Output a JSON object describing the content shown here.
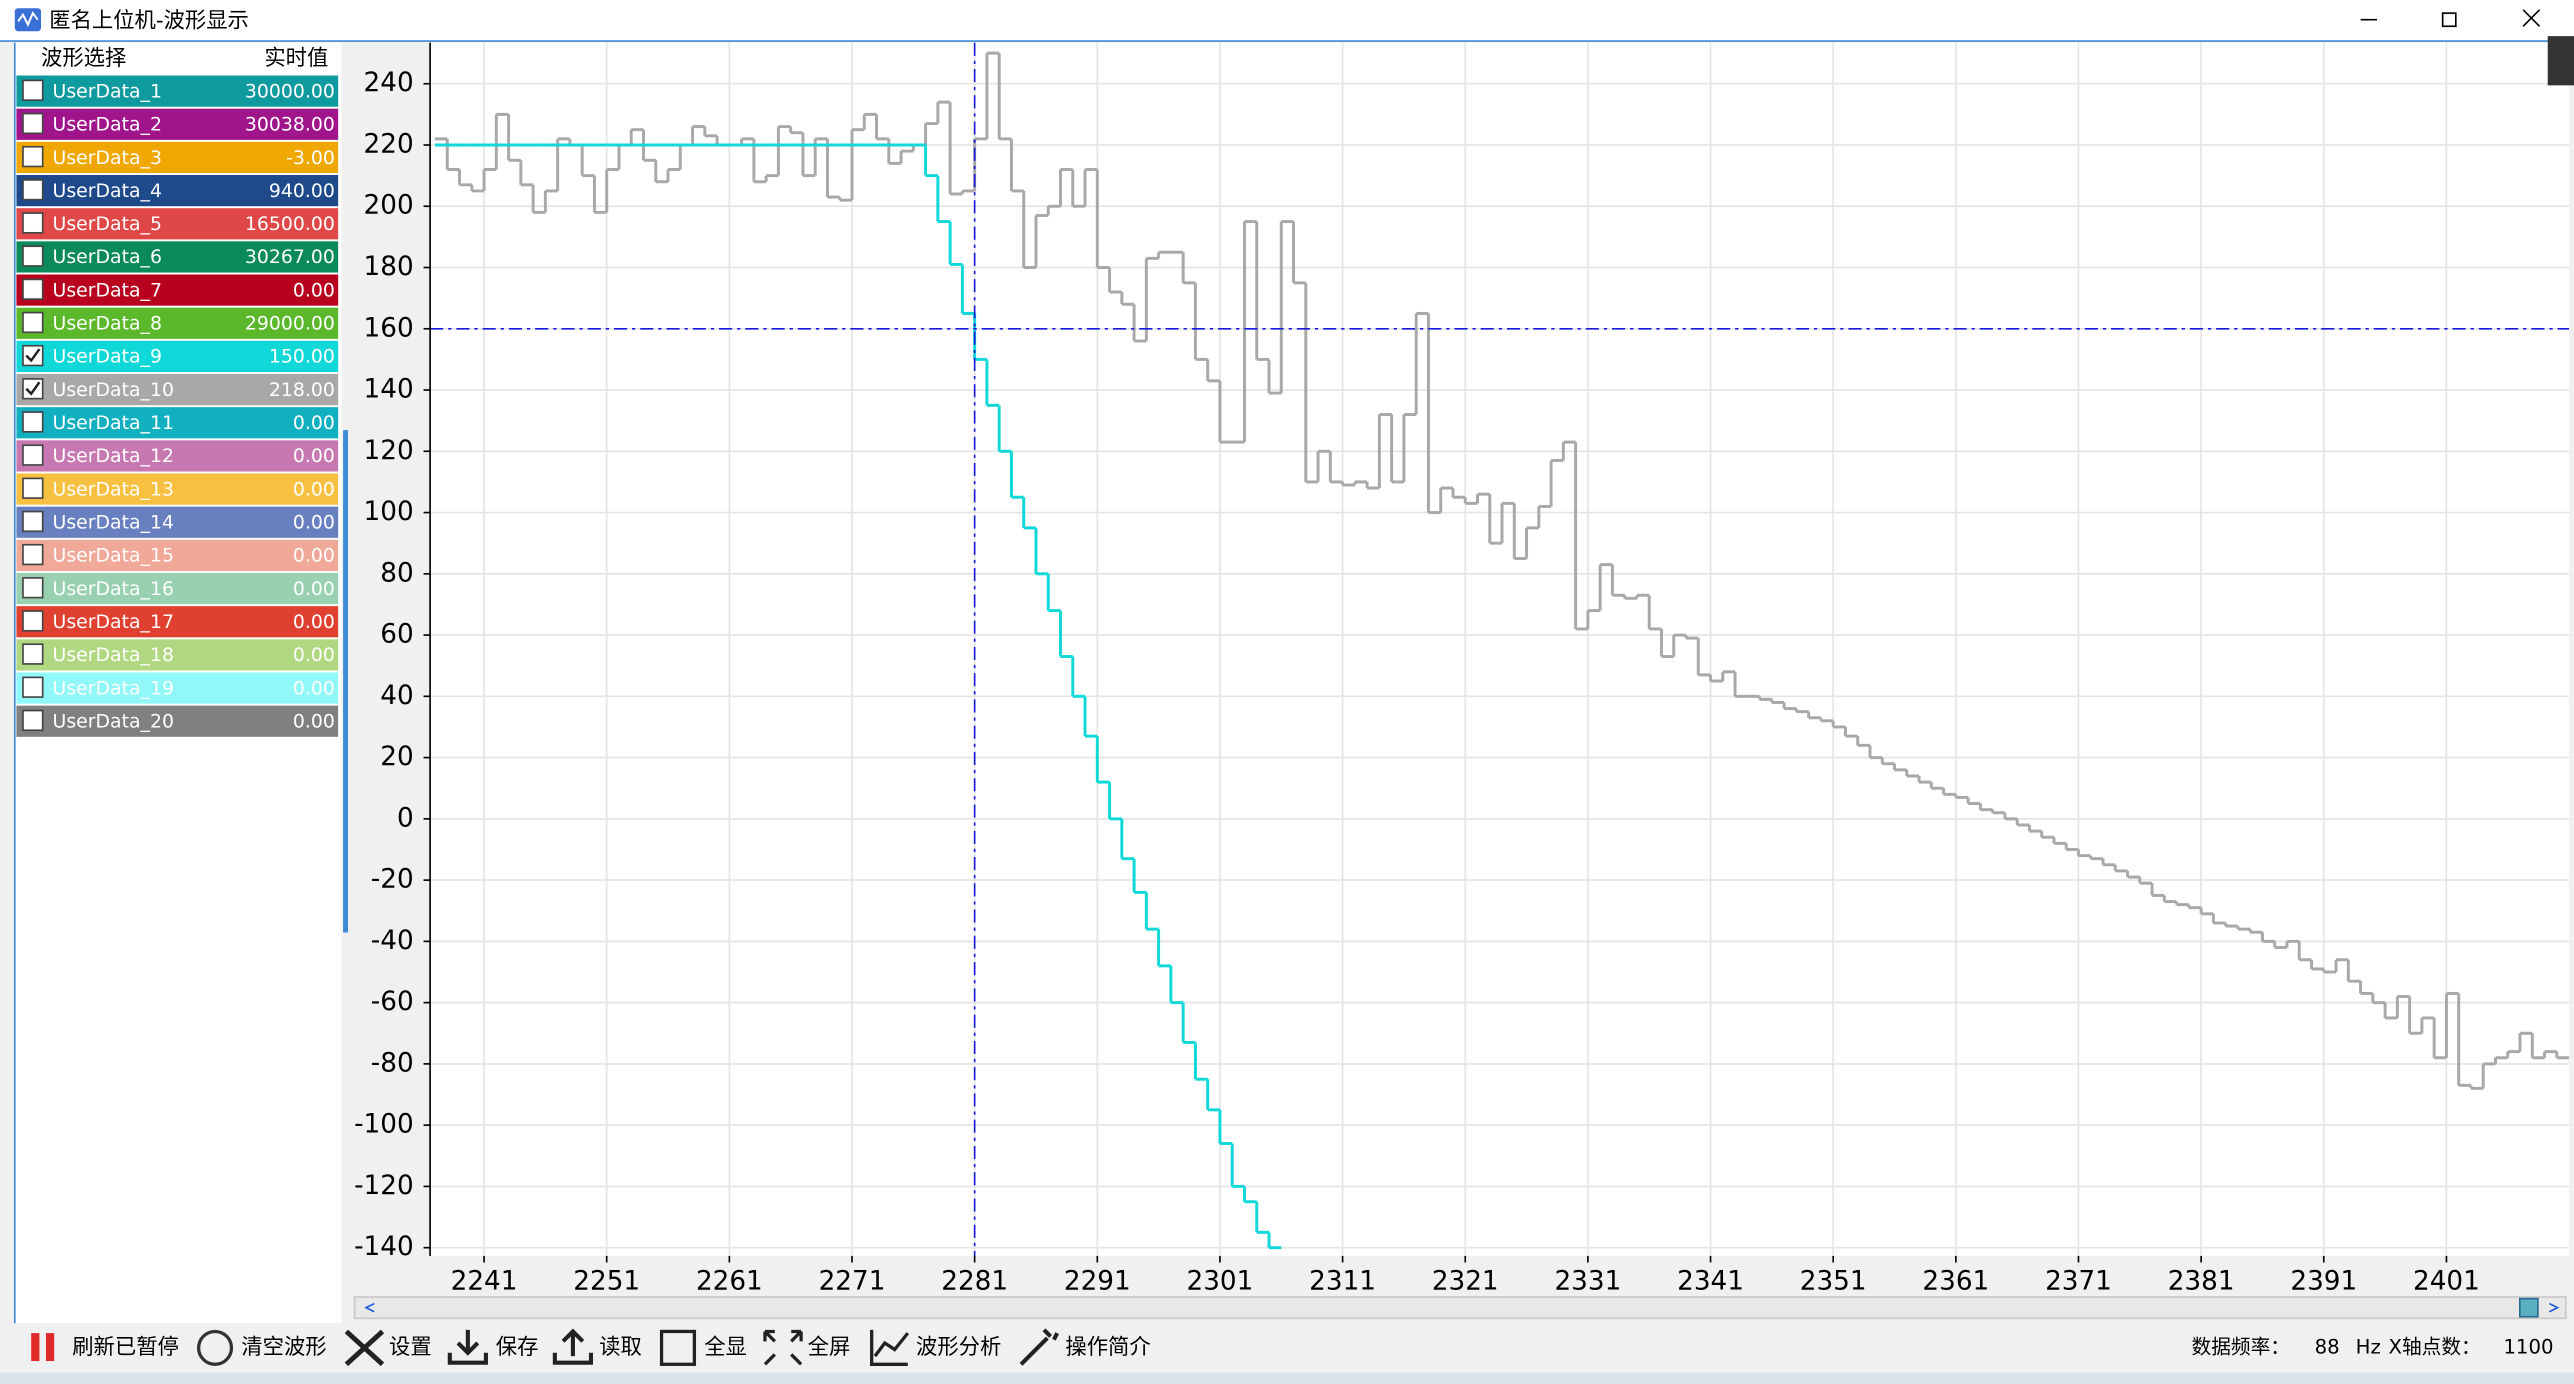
{
  "window": {
    "title": "匿名上位机-波形显示"
  },
  "channel_list": {
    "header": [
      "波形选择",
      "实时值"
    ],
    "rows": [
      {
        "name": "UserData_1",
        "value": "30000.00",
        "color": "#0e9a9e",
        "checked": false
      },
      {
        "name": "UserData_2",
        "value": "30038.00",
        "color": "#a0148c",
        "checked": false
      },
      {
        "name": "UserData_3",
        "value": "-3.00",
        "color": "#f0a800",
        "checked": false
      },
      {
        "name": "UserData_4",
        "value": "940.00",
        "color": "#1e4a8c",
        "checked": false
      },
      {
        "name": "UserData_5",
        "value": "16500.00",
        "color": "#e04848",
        "checked": false
      },
      {
        "name": "UserData_6",
        "value": "30267.00",
        "color": "#0a8a5a",
        "checked": false
      },
      {
        "name": "UserData_7",
        "value": "0.00",
        "color": "#b8001e",
        "checked": false
      },
      {
        "name": "UserData_8",
        "value": "29000.00",
        "color": "#5ab82a",
        "checked": false
      },
      {
        "name": "UserData_9",
        "value": "150.00",
        "color": "#10d8d8",
        "checked": true
      },
      {
        "name": "UserData_10",
        "value": "218.00",
        "color": "#a8a8a8",
        "checked": true
      },
      {
        "name": "UserData_11",
        "value": "0.00",
        "color": "#10b0c0",
        "checked": false
      },
      {
        "name": "UserData_12",
        "value": "0.00",
        "color": "#c878b0",
        "checked": false
      },
      {
        "name": "UserData_13",
        "value": "0.00",
        "color": "#f8c040",
        "checked": false
      },
      {
        "name": "UserData_14",
        "value": "0.00",
        "color": "#6880c0",
        "checked": false
      },
      {
        "name": "UserData_15",
        "value": "0.00",
        "color": "#f0a898",
        "checked": false
      },
      {
        "name": "UserData_16",
        "value": "0.00",
        "color": "#98d0b0",
        "checked": false
      },
      {
        "name": "UserData_17",
        "value": "0.00",
        "color": "#e04030",
        "checked": false
      },
      {
        "name": "UserData_18",
        "value": "0.00",
        "color": "#b0d880",
        "checked": false
      },
      {
        "name": "UserData_19",
        "value": "0.00",
        "color": "#90f8f8",
        "checked": false
      },
      {
        "name": "UserData_20",
        "value": "0.00",
        "color": "#808080",
        "checked": false
      }
    ]
  },
  "chart_data": {
    "type": "line",
    "drawstyle": "steps-post",
    "grid": true,
    "xlim": [
      2236.6,
      2411
    ],
    "xticks": [
      2241,
      2251,
      2261,
      2271,
      2281,
      2291,
      2301,
      2311,
      2321,
      2331,
      2341,
      2351,
      2361,
      2371,
      2381,
      2391,
      2401
    ],
    "ylim": [
      -142.7,
      253.4
    ],
    "yticks": [
      -140,
      -120,
      -100,
      -80,
      -60,
      -40,
      -20,
      0,
      20,
      40,
      60,
      80,
      100,
      120,
      140,
      160,
      180,
      200,
      220,
      240
    ],
    "cursor": {
      "x": 2281,
      "y": 160,
      "color": "#1a1ad8"
    },
    "x": [
      2237,
      2238,
      2239,
      2240,
      2241,
      2242,
      2243,
      2244,
      2245,
      2246,
      2247,
      2248,
      2249,
      2250,
      2251,
      2252,
      2253,
      2254,
      2255,
      2256,
      2257,
      2258,
      2259,
      2260,
      2261,
      2262,
      2263,
      2264,
      2265,
      2266,
      2267,
      2268,
      2269,
      2270,
      2271,
      2272,
      2273,
      2274,
      2275,
      2276,
      2277,
      2278,
      2279,
      2280,
      2281,
      2282,
      2283,
      2284,
      2285,
      2286,
      2287,
      2288,
      2289,
      2290,
      2291,
      2292,
      2293,
      2294,
      2295,
      2296,
      2297,
      2298,
      2299,
      2300,
      2301,
      2302,
      2303,
      2304,
      2305,
      2306,
      2307,
      2308,
      2309,
      2310,
      2311,
      2312,
      2313,
      2314,
      2315,
      2316,
      2317,
      2318,
      2319,
      2320,
      2321,
      2322,
      2323,
      2324,
      2325,
      2326,
      2327,
      2328,
      2329,
      2330,
      2331,
      2332,
      2333,
      2334,
      2335,
      2336,
      2337,
      2338,
      2339,
      2340,
      2341,
      2342,
      2343,
      2344,
      2345,
      2346,
      2347,
      2348,
      2349,
      2350,
      2351,
      2352,
      2353,
      2354,
      2355,
      2356,
      2357,
      2358,
      2359,
      2360,
      2361,
      2362,
      2363,
      2364,
      2365,
      2366,
      2367,
      2368,
      2369,
      2370,
      2371,
      2372,
      2373,
      2374,
      2375,
      2376,
      2377,
      2378,
      2379,
      2380,
      2381,
      2382,
      2383,
      2384,
      2385,
      2386,
      2387,
      2388,
      2389,
      2390,
      2391,
      2392,
      2393,
      2394,
      2395,
      2396,
      2397,
      2398,
      2399,
      2400,
      2401,
      2402,
      2403,
      2404,
      2405,
      2406,
      2407,
      2408,
      2409,
      2410,
      2411
    ],
    "series": [
      {
        "color": "#a8a8a8",
        "values": [
          222,
          212,
          207,
          205,
          212,
          230,
          215,
          207,
          198,
          205,
          222,
          220,
          210,
          198,
          212,
          220,
          225,
          215,
          208,
          212,
          220,
          226,
          223,
          220,
          220,
          222,
          208,
          210,
          226,
          224,
          210,
          222,
          203,
          202,
          225,
          230,
          222,
          214,
          218,
          220,
          227,
          234,
          204,
          205,
          222,
          250,
          222,
          205,
          180,
          197,
          200,
          212,
          200,
          212,
          180,
          172,
          168,
          156,
          183,
          185,
          185,
          175,
          150,
          143,
          123,
          123,
          195,
          150,
          139,
          195,
          175,
          110,
          120,
          110,
          109,
          110,
          108,
          132,
          110,
          132,
          165,
          100,
          108,
          105,
          103,
          106,
          90,
          103,
          85,
          95,
          102,
          117,
          123,
          62,
          68,
          83,
          73,
          72,
          73,
          62,
          53,
          60,
          59,
          47,
          45,
          48,
          40,
          40,
          39,
          38,
          36,
          35,
          33,
          32,
          30,
          27,
          24,
          20,
          18,
          16,
          14,
          12,
          10,
          8,
          7,
          5,
          3,
          2,
          0,
          -2,
          -4,
          -6,
          -8,
          -10,
          -12,
          -13,
          -15,
          -17,
          -19,
          -21,
          -25,
          -27,
          -28,
          -29,
          -31,
          -34,
          -35,
          -36,
          -37,
          -40,
          -42,
          -40,
          -46,
          -49,
          -50,
          -46,
          -53,
          -57,
          -60,
          -65,
          -58,
          -70,
          -65,
          -78,
          -57,
          -87,
          -88,
          -80,
          -78,
          -76,
          -70,
          -78,
          -76,
          -78,
          -78
        ]
      },
      {
        "color": "#10d8d8",
        "values": [
          220,
          220,
          220,
          220,
          220,
          220,
          220,
          220,
          220,
          220,
          220,
          220,
          220,
          220,
          220,
          220,
          220,
          220,
          220,
          220,
          220,
          220,
          220,
          220,
          220,
          220,
          220,
          220,
          220,
          220,
          220,
          220,
          220,
          220,
          220,
          220,
          220,
          220,
          220,
          220,
          210,
          195,
          181,
          165,
          150,
          135,
          120,
          105,
          95,
          80,
          68,
          53,
          40,
          27,
          12,
          0,
          -13,
          -24,
          -36,
          -48,
          -60,
          -73,
          -85,
          -95,
          -106,
          -120,
          -125,
          -135,
          -140,
          null,
          null,
          null,
          null,
          null,
          null,
          null,
          null,
          null,
          null,
          null,
          null,
          null,
          null,
          null,
          null,
          null,
          null,
          null,
          null,
          null,
          null,
          null,
          null,
          null,
          null,
          null,
          null,
          null,
          null,
          null,
          null,
          null,
          null,
          null,
          null,
          null,
          null,
          null,
          null,
          null,
          null,
          null,
          null,
          null,
          null,
          null,
          null,
          null,
          null,
          null,
          null,
          null,
          null,
          null,
          null,
          null,
          null,
          null,
          null,
          null,
          null,
          null,
          null,
          null,
          null,
          null,
          null,
          null,
          null,
          null,
          null,
          null,
          null,
          null,
          null,
          null,
          null,
          null,
          null,
          null,
          null,
          null,
          null,
          null,
          null,
          null,
          null,
          null,
          null,
          null,
          null,
          null,
          null,
          null,
          null,
          null,
          null,
          null,
          null,
          null,
          null,
          null,
          null,
          null,
          null
        ]
      }
    ]
  },
  "toolbar": {
    "buttons": [
      "刷新已暂停",
      "清空波形",
      "设置",
      "保存",
      "读取",
      "全显",
      "全屏",
      "波形分析",
      "操作简介"
    ]
  },
  "status": {
    "rate_label": "数据频率：",
    "rate": 88,
    "rate_unit": "Hz",
    "points_label": "X轴点数：",
    "points": 1100
  }
}
